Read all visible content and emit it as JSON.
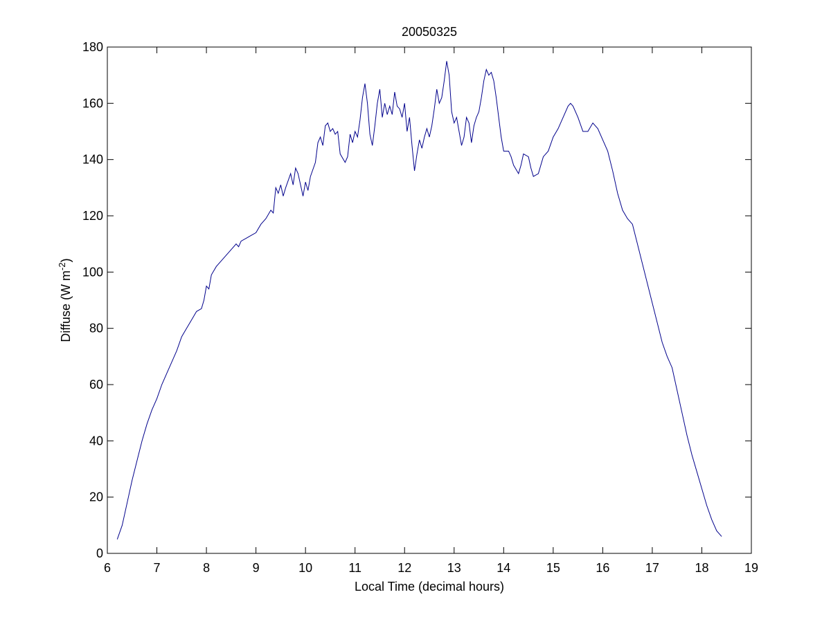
{
  "chart_data": {
    "type": "line",
    "title": "20050325",
    "xlabel": "Local Time (decimal hours)",
    "ylabel": {
      "text": "Diffuse (W m",
      "superscript": "-2",
      "suffix": ")"
    },
    "xlim": [
      6,
      19
    ],
    "xticks": [
      6,
      7,
      8,
      9,
      10,
      11,
      12,
      13,
      14,
      15,
      16,
      17,
      18,
      19
    ],
    "ylim": [
      0,
      180
    ],
    "yticks": [
      0,
      20,
      40,
      60,
      80,
      100,
      120,
      140,
      160,
      180
    ],
    "grid": false,
    "series": [
      {
        "color": "#00008b",
        "x": [
          6.2,
          6.3,
          6.4,
          6.5,
          6.6,
          6.7,
          6.8,
          6.9,
          7.0,
          7.1,
          7.2,
          7.3,
          7.4,
          7.5,
          7.6,
          7.7,
          7.8,
          7.9,
          7.95,
          8.0,
          8.05,
          8.1,
          8.2,
          8.3,
          8.4,
          8.5,
          8.6,
          8.65,
          8.7,
          8.8,
          8.9,
          9.0,
          9.1,
          9.2,
          9.3,
          9.35,
          9.4,
          9.45,
          9.5,
          9.55,
          9.6,
          9.7,
          9.75,
          9.8,
          9.85,
          9.9,
          9.95,
          10.0,
          10.05,
          10.1,
          10.2,
          10.25,
          10.3,
          10.35,
          10.4,
          10.45,
          10.5,
          10.55,
          10.6,
          10.65,
          10.7,
          10.8,
          10.85,
          10.9,
          10.95,
          11.0,
          11.05,
          11.1,
          11.15,
          11.2,
          11.25,
          11.3,
          11.35,
          11.4,
          11.45,
          11.5,
          11.55,
          11.6,
          11.65,
          11.7,
          11.75,
          11.8,
          11.85,
          11.9,
          11.95,
          12.0,
          12.05,
          12.1,
          12.15,
          12.2,
          12.25,
          12.3,
          12.35,
          12.4,
          12.45,
          12.5,
          12.55,
          12.6,
          12.65,
          12.7,
          12.75,
          12.8,
          12.85,
          12.9,
          12.95,
          13.0,
          13.05,
          13.1,
          13.15,
          13.2,
          13.25,
          13.3,
          13.35,
          13.4,
          13.45,
          13.5,
          13.55,
          13.6,
          13.65,
          13.7,
          13.75,
          13.8,
          13.85,
          13.9,
          13.95,
          14.0,
          14.1,
          14.15,
          14.2,
          14.3,
          14.35,
          14.4,
          14.5,
          14.55,
          14.6,
          14.7,
          14.8,
          14.9,
          15.0,
          15.1,
          15.2,
          15.3,
          15.35,
          15.4,
          15.5,
          15.6,
          15.7,
          15.8,
          15.9,
          16.0,
          16.1,
          16.2,
          16.3,
          16.4,
          16.5,
          16.6,
          16.7,
          16.8,
          16.9,
          17.0,
          17.1,
          17.2,
          17.3,
          17.4,
          17.5,
          17.6,
          17.7,
          17.8,
          17.9,
          18.0,
          18.1,
          18.2,
          18.3,
          18.4
        ],
        "values": [
          5,
          10,
          18,
          26,
          33,
          40,
          46,
          51,
          55,
          60,
          64,
          68,
          72,
          77,
          80,
          83,
          86,
          87,
          90,
          95,
          94,
          99,
          102,
          104,
          106,
          108,
          110,
          109,
          111,
          112,
          113,
          114,
          117,
          119,
          122,
          121,
          130,
          128,
          131,
          127,
          130,
          135,
          131,
          137,
          135,
          131,
          127,
          132,
          129,
          134,
          139,
          146,
          148,
          145,
          152,
          153,
          150,
          151,
          149,
          150,
          142,
          139,
          141,
          149,
          146,
          150,
          148,
          154,
          162,
          167,
          160,
          149,
          145,
          152,
          160,
          165,
          155,
          160,
          156,
          159,
          156,
          164,
          159,
          158,
          155,
          160,
          150,
          155,
          145,
          136,
          142,
          147,
          144,
          148,
          151,
          148,
          152,
          158,
          165,
          160,
          162,
          168,
          175,
          170,
          157,
          153,
          155,
          150,
          145,
          148,
          155,
          153,
          146,
          152,
          155,
          157,
          162,
          168,
          172,
          170,
          171,
          168,
          162,
          155,
          148,
          143,
          143,
          141,
          138,
          135,
          138,
          142,
          141,
          137,
          134,
          135,
          141,
          143,
          148,
          151,
          155,
          159,
          160,
          159,
          155,
          150,
          150,
          153,
          151,
          147,
          143,
          136,
          128,
          122,
          119,
          117,
          110,
          103,
          96,
          89,
          82,
          75,
          70,
          66,
          58,
          50,
          42,
          35,
          29,
          23,
          17,
          12,
          8,
          6
        ]
      }
    ]
  }
}
